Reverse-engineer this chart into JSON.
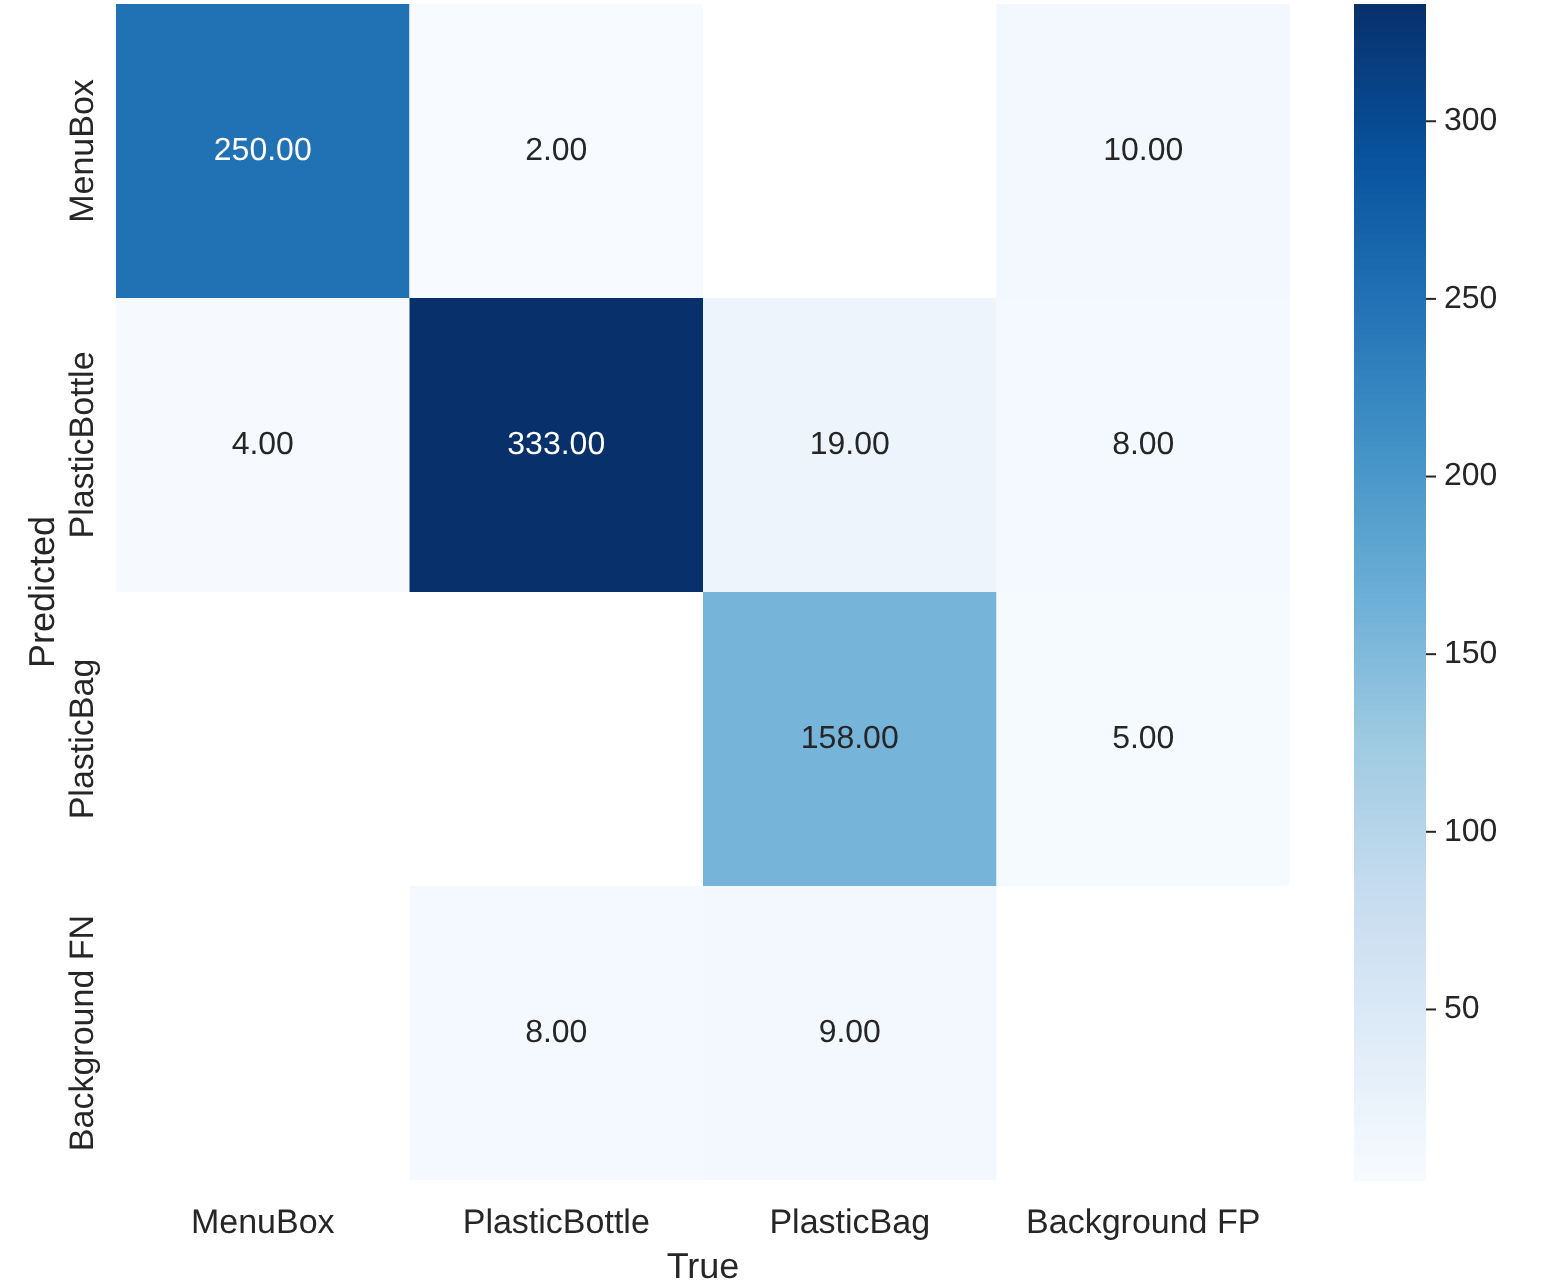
{
  "chart_data": {
    "type": "heatmap",
    "xlabel": "True",
    "ylabel": "Predicted",
    "categories": [
      "MenuBox",
      "PlasticBottle",
      "PlasticBag",
      "Background FP"
    ],
    "y_categories": [
      "MenuBox",
      "PlasticBottle",
      "PlasticBag",
      "Background FN"
    ],
    "cells": [
      [
        250,
        2,
        null,
        10
      ],
      [
        4,
        333,
        19,
        8
      ],
      [
        null,
        null,
        158,
        5
      ],
      [
        null,
        8,
        9,
        null
      ]
    ],
    "cell_labels": [
      [
        "250.00",
        "2.00",
        null,
        "10.00"
      ],
      [
        "4.00",
        "333.00",
        "19.00",
        "8.00"
      ],
      [
        null,
        null,
        "158.00",
        "5.00"
      ],
      [
        null,
        "8.00",
        "9.00",
        null
      ]
    ],
    "clim": [
      2,
      333
    ],
    "cticks": [
      50,
      100,
      150,
      200,
      250,
      300
    ]
  }
}
